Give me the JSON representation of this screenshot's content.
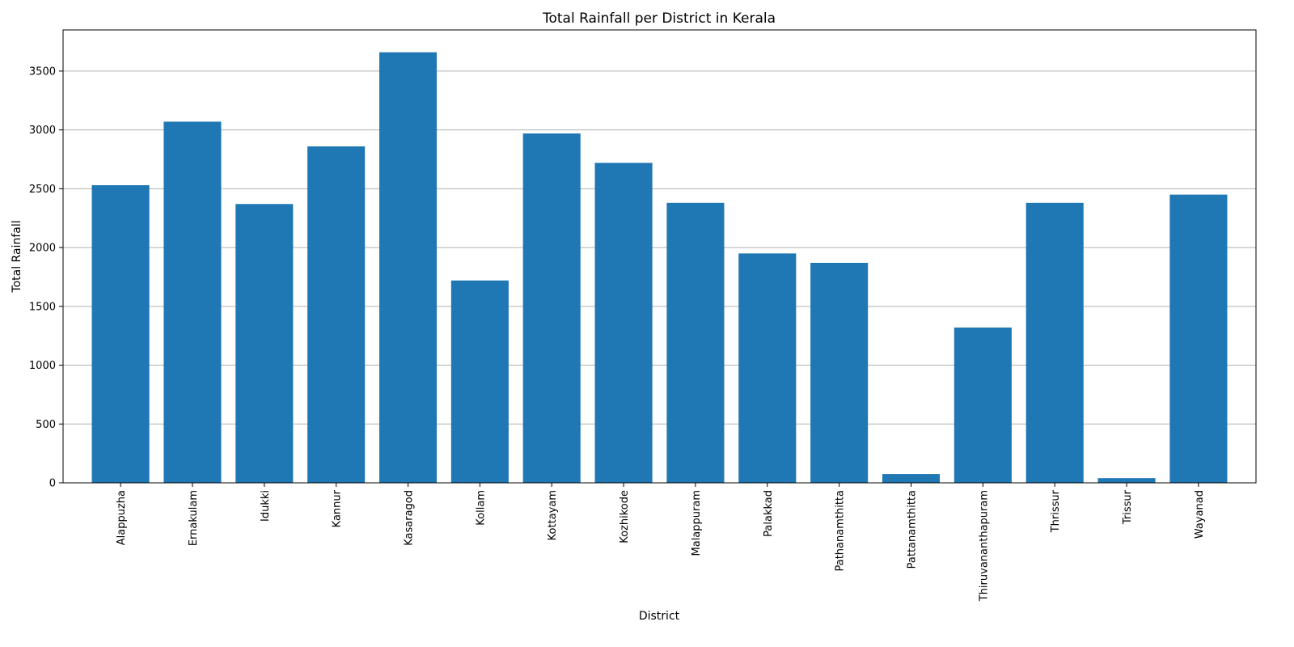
{
  "chart_data": {
    "type": "bar",
    "title": "Total Rainfall per District in Kerala",
    "xlabel": "District",
    "ylabel": "Total Rainfall",
    "categories": [
      "Alappuzha",
      "Ernakulam",
      "Idukki",
      "Kannur",
      "Kasaragod",
      "Kollam",
      "Kottayam",
      "Kozhikode",
      "Malappuram",
      "Palakkad",
      "Pathanamthitta",
      "Pattanamthitta",
      "Thiruvananthapuram",
      "Thrissur",
      "Trissur",
      "Wayanad"
    ],
    "values": [
      2530,
      3070,
      2370,
      2860,
      3660,
      1720,
      2970,
      2720,
      2380,
      1950,
      1870,
      75,
      1320,
      2380,
      40,
      2450
    ],
    "yticks": [
      0,
      500,
      1000,
      1500,
      2000,
      2500,
      3000,
      3500
    ],
    "ylim": [
      0,
      3850
    ],
    "grid": "y",
    "bar_color": "#1f77b4"
  }
}
